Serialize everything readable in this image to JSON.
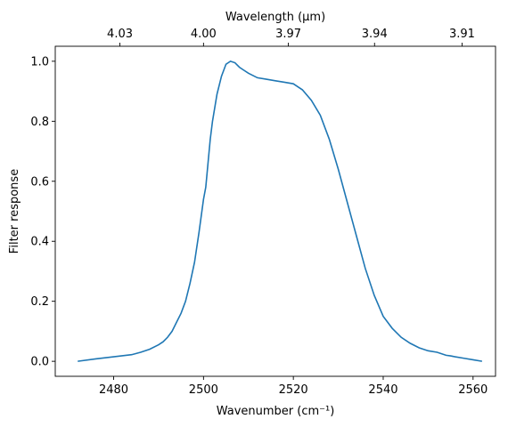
{
  "chart_data": {
    "type": "line",
    "xlabel": "Wavenumber (cm⁻¹)",
    "x2label": "Wavelength (μm)",
    "ylabel": "Filter response",
    "xlim": [
      2467,
      2565
    ],
    "ylim": [
      -0.05,
      1.05
    ],
    "x_ticks": [
      2480,
      2500,
      2520,
      2540,
      2560
    ],
    "x_tick_labels": [
      "2480",
      "2500",
      "2520",
      "2540",
      "2560"
    ],
    "y_ticks": [
      0.0,
      0.2,
      0.4,
      0.6,
      0.8,
      1.0
    ],
    "y_tick_labels": [
      "0.0",
      "0.2",
      "0.4",
      "0.6",
      "0.8",
      "1.0"
    ],
    "x2_tick_labels": [
      "4.03",
      "4.00",
      "3.97",
      "3.94",
      "3.91"
    ],
    "x2_tick_wavelength_um": [
      4.03,
      4.0,
      3.97,
      3.94,
      3.91
    ],
    "grid": false,
    "line_color": "#1f77b4",
    "series": [
      {
        "x": [
          2472,
          2476,
          2480,
          2484,
          2486,
          2488,
          2490,
          2491,
          2492,
          2493,
          2494,
          2495,
          2496,
          2497,
          2498,
          2499,
          2500,
          2500.5,
          2501,
          2501.5,
          2502,
          2503,
          2504,
          2505,
          2506,
          2507,
          2508,
          2509,
          2510,
          2512,
          2514,
          2516,
          2518,
          2520,
          2521,
          2522,
          2524,
          2526,
          2528,
          2530,
          2532,
          2534,
          2536,
          2538,
          2540,
          2542,
          2544,
          2546,
          2548,
          2550,
          2552,
          2554,
          2555,
          2556,
          2558,
          2560,
          2562
        ],
        "y": [
          0.0,
          0.008,
          0.015,
          0.022,
          0.03,
          0.04,
          0.055,
          0.065,
          0.08,
          0.1,
          0.13,
          0.16,
          0.2,
          0.26,
          0.33,
          0.43,
          0.54,
          0.58,
          0.66,
          0.74,
          0.8,
          0.89,
          0.95,
          0.99,
          1.0,
          0.995,
          0.98,
          0.97,
          0.96,
          0.945,
          0.94,
          0.935,
          0.93,
          0.925,
          0.915,
          0.905,
          0.87,
          0.82,
          0.74,
          0.64,
          0.53,
          0.42,
          0.31,
          0.22,
          0.15,
          0.11,
          0.08,
          0.06,
          0.045,
          0.035,
          0.03,
          0.02,
          0.018,
          0.015,
          0.01,
          0.005,
          0.0
        ]
      }
    ]
  }
}
